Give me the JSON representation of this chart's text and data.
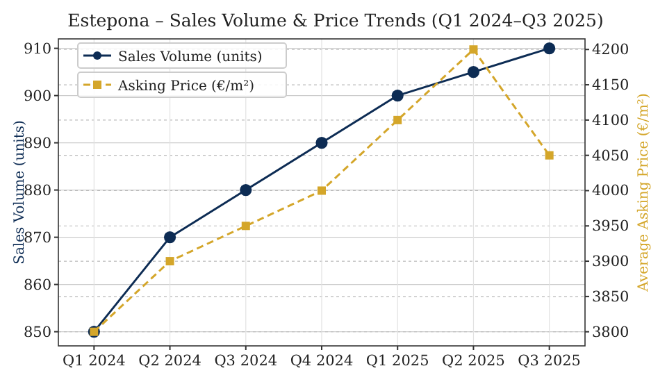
{
  "chart_data": {
    "type": "line",
    "title": "Estepona – Sales Volume & Price Trends (Q1 2024–Q3 2025)",
    "categories": [
      "Q1 2024",
      "Q2 2024",
      "Q3 2024",
      "Q4 2024",
      "Q1 2025",
      "Q2 2025",
      "Q3 2025"
    ],
    "series": [
      {
        "name": "Sales Volume (units)",
        "color": "#0d2c54",
        "values": [
          850,
          870,
          880,
          890,
          900,
          905,
          910
        ],
        "marker": "circle",
        "line_style": "solid"
      },
      {
        "name": "Asking Price (€/m²)",
        "color": "#d4a62a",
        "values": [
          3800,
          3900,
          3950,
          4000,
          4100,
          4200,
          4050
        ],
        "axis": "y2",
        "marker": "square",
        "line_style": "dashed"
      }
    ],
    "ylabel": "Sales Volume (units)",
    "y2label": "Average Asking Price (€/m²)",
    "ylim": [
      847,
      912
    ],
    "yticks": [
      850,
      860,
      870,
      880,
      890,
      900,
      910
    ],
    "y2lim": [
      3780,
      4215
    ],
    "y2ticks": [
      3800,
      3850,
      3900,
      3950,
      4000,
      4050,
      4100,
      4150,
      4200
    ],
    "grid": true,
    "legend": "top left"
  }
}
